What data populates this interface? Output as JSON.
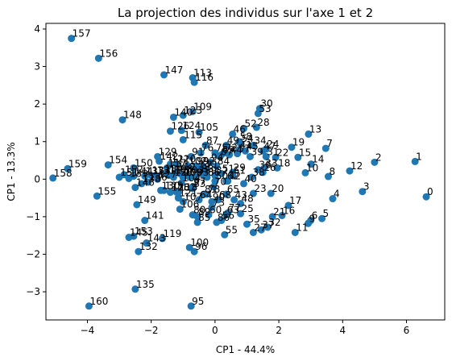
{
  "chart_data": {
    "type": "scatter",
    "title": "La projection des individus sur l'axe 1 et 2",
    "xlabel": "CP1 - 44.4%",
    "ylabel": "CP1 - 13.3%",
    "xlim": [
      -5.3,
      7.2
    ],
    "ylim": [
      -3.75,
      4.15
    ],
    "xticks": [
      -4,
      -2,
      0,
      2,
      4,
      6
    ],
    "yticks": [
      -3,
      -2,
      -1,
      0,
      1,
      2,
      3,
      4
    ],
    "grid": false,
    "point_color": "#1f77b4",
    "points": [
      {
        "label": "0",
        "x": 6.62,
        "y": -0.47
      },
      {
        "label": "1",
        "x": 6.27,
        "y": 0.47
      },
      {
        "label": "2",
        "x": 5.0,
        "y": 0.45
      },
      {
        "label": "3",
        "x": 4.62,
        "y": -0.33
      },
      {
        "label": "4",
        "x": 3.69,
        "y": -0.52
      },
      {
        "label": "5",
        "x": 3.35,
        "y": -1.05
      },
      {
        "label": "6",
        "x": 3.0,
        "y": -1.1
      },
      {
        "label": "7",
        "x": 3.47,
        "y": 0.82
      },
      {
        "label": "8",
        "x": 3.55,
        "y": 0.07
      },
      {
        "label": "9",
        "x": 2.92,
        "y": -1.18
      },
      {
        "label": "10",
        "x": 2.83,
        "y": 0.17
      },
      {
        "label": "11",
        "x": 2.51,
        "y": -1.42
      },
      {
        "label": "12",
        "x": 4.22,
        "y": 0.22
      },
      {
        "label": "13",
        "x": 2.93,
        "y": 1.2
      },
      {
        "label": "14",
        "x": 3.01,
        "y": 0.4
      },
      {
        "label": "15",
        "x": 2.6,
        "y": 0.58
      },
      {
        "label": "16",
        "x": 2.1,
        "y": -0.97
      },
      {
        "label": "17",
        "x": 2.3,
        "y": -0.7
      },
      {
        "label": "18",
        "x": 1.95,
        "y": 0.3
      },
      {
        "label": "19",
        "x": 2.4,
        "y": 0.85
      },
      {
        "label": "20",
        "x": 1.75,
        "y": -0.38
      },
      {
        "label": "21",
        "x": 1.8,
        "y": -1.0
      },
      {
        "label": "22",
        "x": 1.9,
        "y": 0.58
      },
      {
        "label": "23",
        "x": 1.2,
        "y": -0.38
      },
      {
        "label": "24",
        "x": 1.6,
        "y": 0.8
      },
      {
        "label": "25",
        "x": 0.8,
        "y": -0.92
      },
      {
        "label": "26",
        "x": 1.5,
        "y": 0.18
      },
      {
        "label": "27",
        "x": 1.2,
        "y": -1.42
      },
      {
        "label": "28",
        "x": 1.3,
        "y": 1.38
      },
      {
        "label": "29",
        "x": 0.55,
        "y": 0.18
      },
      {
        "label": "30",
        "x": 1.4,
        "y": 1.88
      },
      {
        "label": "31",
        "x": 1.6,
        "y": 0.6
      },
      {
        "label": "32",
        "x": 1.65,
        "y": -1.28
      },
      {
        "label": "33",
        "x": 1.55,
        "y": 0.3
      },
      {
        "label": "34",
        "x": 1.2,
        "y": 0.9
      },
      {
        "label": "35",
        "x": 1.0,
        "y": -1.2
      },
      {
        "label": "36",
        "x": 1.35,
        "y": 0.25
      },
      {
        "label": "37",
        "x": 1.45,
        "y": -1.35
      },
      {
        "label": "38",
        "x": 1.15,
        "y": 0.05
      },
      {
        "label": "39",
        "x": 1.1,
        "y": 0.6
      },
      {
        "label": "40",
        "x": 0.9,
        "y": -0.12
      },
      {
        "label": "41",
        "x": 0.75,
        "y": 0.78
      },
      {
        "label": "42",
        "x": 0.4,
        "y": -0.05
      },
      {
        "label": "43",
        "x": 0.6,
        "y": -0.55
      },
      {
        "label": "44",
        "x": 0.45,
        "y": 0.65
      },
      {
        "label": "45",
        "x": 0.95,
        "y": 0.75
      },
      {
        "label": "46",
        "x": 0.55,
        "y": 1.2
      },
      {
        "label": "47",
        "x": 1.5,
        "y": 0.75
      },
      {
        "label": "48",
        "x": 0.8,
        "y": -0.65
      },
      {
        "label": "49",
        "x": 0.35,
        "y": 0.9
      },
      {
        "label": "50",
        "x": 0.0,
        "y": -0.05
      },
      {
        "label": "51",
        "x": 0.2,
        "y": 0.15
      },
      {
        "label": "52",
        "x": 0.9,
        "y": 1.35
      },
      {
        "label": "53",
        "x": 1.35,
        "y": 1.75
      },
      {
        "label": "54",
        "x": 0.8,
        "y": 0.95
      },
      {
        "label": "55",
        "x": 0.3,
        "y": -1.48
      },
      {
        "label": "56",
        "x": 0.2,
        "y": -1.1
      },
      {
        "label": "57",
        "x": 0.7,
        "y": 0.68
      },
      {
        "label": "58",
        "x": 0.75,
        "y": 1.0
      },
      {
        "label": "59",
        "x": -0.35,
        "y": 0.1
      },
      {
        "label": "60",
        "x": -0.2,
        "y": -0.95
      },
      {
        "label": "61",
        "x": 0.55,
        "y": 0.1
      },
      {
        "label": "62",
        "x": 0.35,
        "y": -0.05
      },
      {
        "label": "63",
        "x": 0.35,
        "y": -0.95
      },
      {
        "label": "64",
        "x": -0.5,
        "y": -0.55
      },
      {
        "label": "65",
        "x": 0.35,
        "y": -0.4
      },
      {
        "label": "66",
        "x": -0.25,
        "y": 0.05
      },
      {
        "label": "67",
        "x": 0.15,
        "y": 0.6
      },
      {
        "label": "68",
        "x": 0.1,
        "y": -0.55
      },
      {
        "label": "69",
        "x": 0.2,
        "y": 0.65
      },
      {
        "label": "70",
        "x": -0.05,
        "y": -0.2
      },
      {
        "label": "71",
        "x": -0.3,
        "y": 0.25
      },
      {
        "label": "72",
        "x": 0.3,
        "y": 0.7
      },
      {
        "label": "73",
        "x": -0.1,
        "y": -0.75
      },
      {
        "label": "74",
        "x": -0.55,
        "y": 0.25
      },
      {
        "label": "75",
        "x": 0.0,
        "y": 0.7
      },
      {
        "label": "76",
        "x": -0.45,
        "y": 0.7
      },
      {
        "label": "77",
        "x": 0.4,
        "y": -0.9
      },
      {
        "label": "78",
        "x": -0.25,
        "y": -0.4
      },
      {
        "label": "79",
        "x": -0.8,
        "y": 0.05
      },
      {
        "label": "80",
        "x": -0.7,
        "y": -0.95
      },
      {
        "label": "81",
        "x": -0.35,
        "y": -0.4
      },
      {
        "label": "82",
        "x": 0.0,
        "y": 0.1
      },
      {
        "label": "83",
        "x": -0.7,
        "y": -0.25
      },
      {
        "label": "84",
        "x": 0.05,
        "y": 0.35
      },
      {
        "label": "85",
        "x": -0.55,
        "y": -1.15
      },
      {
        "label": "86",
        "x": 0.05,
        "y": -1.15
      },
      {
        "label": "87",
        "x": -0.3,
        "y": 0.9
      },
      {
        "label": "88",
        "x": -0.45,
        "y": 0.15
      },
      {
        "label": "89",
        "x": -0.55,
        "y": -1.0
      },
      {
        "label": "90",
        "x": -0.1,
        "y": -0.6
      },
      {
        "label": "91",
        "x": -0.75,
        "y": 0.6
      },
      {
        "label": "92",
        "x": -0.4,
        "y": 0.35
      },
      {
        "label": "93",
        "x": -0.6,
        "y": 0.05
      },
      {
        "label": "94",
        "x": -0.15,
        "y": 0.45
      },
      {
        "label": "95",
        "x": -0.75,
        "y": -3.38
      },
      {
        "label": "96",
        "x": -0.65,
        "y": -1.93
      },
      {
        "label": "97",
        "x": -0.7,
        "y": -0.2
      },
      {
        "label": "98",
        "x": -1.1,
        "y": 0.15
      },
      {
        "label": "99",
        "x": -0.6,
        "y": 0.35
      },
      {
        "label": "100",
        "x": -0.8,
        "y": -1.82
      },
      {
        "label": "101",
        "x": -1.2,
        "y": -0.35
      },
      {
        "label": "102",
        "x": -0.85,
        "y": 0.35
      },
      {
        "label": "103",
        "x": -0.95,
        "y": 0.1
      },
      {
        "label": "104",
        "x": -1.05,
        "y": -0.1
      },
      {
        "label": "105",
        "x": -0.5,
        "y": 1.25
      },
      {
        "label": "106",
        "x": -1.1,
        "y": -0.8
      },
      {
        "label": "107",
        "x": -1.0,
        "y": -0.6
      },
      {
        "label": "108",
        "x": -1.0,
        "y": 0.05
      },
      {
        "label": "109",
        "x": -0.7,
        "y": 1.8
      },
      {
        "label": "110",
        "x": -1.2,
        "y": 0.4
      },
      {
        "label": "111",
        "x": -1.45,
        "y": 0.1
      },
      {
        "label": "112",
        "x": -1.2,
        "y": 0.2
      },
      {
        "label": "113",
        "x": -0.7,
        "y": 2.7
      },
      {
        "label": "114",
        "x": -1.3,
        "y": 0.1
      },
      {
        "label": "115",
        "x": -1.0,
        "y": 1.05
      },
      {
        "label": "116",
        "x": -0.65,
        "y": 2.58
      },
      {
        "label": "117",
        "x": -1.5,
        "y": 0.3
      },
      {
        "label": "118",
        "x": -1.15,
        "y": -0.35
      },
      {
        "label": "119",
        "x": -1.65,
        "y": -1.58
      },
      {
        "label": "120",
        "x": -1.3,
        "y": 0.05
      },
      {
        "label": "121",
        "x": -1.15,
        "y": -0.5
      },
      {
        "label": "122",
        "x": -1.4,
        "y": 0.4
      },
      {
        "label": "123",
        "x": -1.0,
        "y": 1.7
      },
      {
        "label": "124",
        "x": -1.05,
        "y": 1.3
      },
      {
        "label": "125",
        "x": -1.6,
        "y": -0.3
      },
      {
        "label": "126",
        "x": -1.4,
        "y": 1.28
      },
      {
        "label": "127",
        "x": -1.8,
        "y": 0.0
      },
      {
        "label": "128",
        "x": -1.4,
        "y": -0.35
      },
      {
        "label": "129",
        "x": -1.8,
        "y": 0.6
      },
      {
        "label": "130",
        "x": -1.7,
        "y": -0.3
      },
      {
        "label": "131",
        "x": -1.85,
        "y": 0.1
      },
      {
        "label": "132",
        "x": -2.4,
        "y": -1.93
      },
      {
        "label": "133",
        "x": -2.0,
        "y": 0.1
      },
      {
        "label": "134",
        "x": -1.6,
        "y": 0.15
      },
      {
        "label": "135",
        "x": -2.5,
        "y": -2.93
      },
      {
        "label": "136",
        "x": -2.1,
        "y": -0.08
      },
      {
        "label": "137",
        "x": -2.2,
        "y": 0.08
      },
      {
        "label": "138",
        "x": -2.3,
        "y": -0.12
      },
      {
        "label": "139",
        "x": -2.7,
        "y": 0.02
      },
      {
        "label": "140",
        "x": -1.3,
        "y": 1.65
      },
      {
        "label": "141",
        "x": -2.2,
        "y": -1.1
      },
      {
        "label": "142",
        "x": -1.75,
        "y": 0.48
      },
      {
        "label": "143",
        "x": -2.15,
        "y": -1.7
      },
      {
        "label": "144",
        "x": -2.55,
        "y": 0.08
      },
      {
        "label": "145",
        "x": -2.7,
        "y": -1.55
      },
      {
        "label": "146",
        "x": -2.5,
        "y": -0.22
      },
      {
        "label": "147",
        "x": -1.6,
        "y": 2.78
      },
      {
        "label": "148",
        "x": -2.9,
        "y": 1.58
      },
      {
        "label": "149",
        "x": -2.45,
        "y": -0.68
      },
      {
        "label": "150",
        "x": -2.55,
        "y": 0.3
      },
      {
        "label": "151",
        "x": -3.0,
        "y": 0.05
      },
      {
        "label": "152",
        "x": -2.85,
        "y": 0.12
      },
      {
        "label": "153",
        "x": -2.55,
        "y": -1.52
      },
      {
        "label": "154",
        "x": -3.35,
        "y": 0.38
      },
      {
        "label": "155",
        "x": -3.7,
        "y": -0.45
      },
      {
        "label": "156",
        "x": -3.65,
        "y": 3.22
      },
      {
        "label": "157",
        "x": -4.5,
        "y": 3.75
      },
      {
        "label": "158",
        "x": -5.08,
        "y": 0.03
      },
      {
        "label": "159",
        "x": -4.62,
        "y": 0.28
      },
      {
        "label": "160",
        "x": -3.95,
        "y": -3.38
      }
    ]
  }
}
